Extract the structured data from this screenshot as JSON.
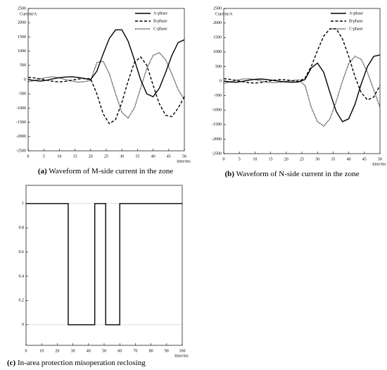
{
  "chart_data": [
    {
      "type": "line",
      "caption_label": "(a)",
      "caption": "Waveform of M-side current in the zone",
      "xlabel": "time/ms",
      "ylabel": "Current/A",
      "x": [
        0,
        2,
        4,
        6,
        8,
        10,
        12,
        14,
        16,
        18,
        20,
        22,
        24,
        26,
        28,
        30,
        32,
        34,
        36,
        38,
        40,
        42,
        44,
        46,
        48,
        50
      ],
      "series": [
        {
          "name": "A-phase",
          "color": "#000000",
          "dash": "solid",
          "values": [
            0,
            -30,
            -50,
            -20,
            30,
            70,
            90,
            100,
            80,
            40,
            0,
            300,
            900,
            1450,
            1750,
            1750,
            1350,
            700,
            0,
            -500,
            -600,
            -300,
            250,
            850,
            1300,
            1400
          ]
        },
        {
          "name": "B-phase",
          "color": "#000000",
          "dash": "dashed",
          "values": [
            80,
            60,
            20,
            -20,
            -60,
            -80,
            -60,
            -20,
            20,
            40,
            30,
            -500,
            -1200,
            -1550,
            -1400,
            -800,
            -50,
            600,
            800,
            500,
            -200,
            -850,
            -1250,
            -1300,
            -1000,
            -600
          ]
        },
        {
          "name": "C-phase",
          "color": "#000000",
          "dash": "dotted",
          "values": [
            -80,
            -30,
            30,
            80,
            100,
            60,
            0,
            -50,
            -90,
            -70,
            -30,
            600,
            650,
            200,
            -500,
            -1150,
            -1350,
            -1000,
            -300,
            400,
            850,
            950,
            700,
            200,
            -350,
            -700
          ]
        }
      ],
      "xlim": [
        0,
        50
      ],
      "xticks": [
        0,
        5,
        10,
        15,
        20,
        25,
        30,
        35,
        40,
        45,
        50
      ],
      "ylim": [
        -2500,
        2500
      ],
      "yticks": [
        -2500,
        -2000,
        -1500,
        -1000,
        -500,
        0,
        500,
        1000,
        1500,
        2000,
        2500
      ],
      "legend": "upper right"
    },
    {
      "type": "line",
      "caption_label": "(b)",
      "caption": "Waveform of N-side current in the zone",
      "xlabel": "time/ms",
      "ylabel": "Current/A",
      "x": [
        0,
        2,
        4,
        6,
        8,
        10,
        12,
        14,
        16,
        18,
        20,
        22,
        24,
        26,
        28,
        30,
        32,
        34,
        36,
        38,
        40,
        42,
        44,
        46,
        48,
        50
      ],
      "series": [
        {
          "name": "A-phase",
          "color": "#000000",
          "dash": "solid",
          "values": [
            0,
            -30,
            -40,
            -10,
            30,
            60,
            70,
            50,
            20,
            -10,
            -30,
            -40,
            -30,
            50,
            450,
            620,
            300,
            -400,
            -1050,
            -1400,
            -1300,
            -800,
            -100,
            500,
            850,
            900
          ]
        },
        {
          "name": "B-phase",
          "color": "#000000",
          "dash": "dashed",
          "values": [
            80,
            60,
            20,
            -20,
            -60,
            -70,
            -50,
            -10,
            30,
            50,
            40,
            10,
            -10,
            100,
            500,
            1050,
            1550,
            1800,
            1800,
            1450,
            850,
            150,
            -400,
            -650,
            -550,
            -150
          ]
        },
        {
          "name": "C-phase",
          "color": "#000000",
          "dash": "dotted",
          "values": [
            -80,
            -30,
            30,
            70,
            80,
            50,
            0,
            -40,
            -60,
            -40,
            -10,
            20,
            40,
            -150,
            -900,
            -1400,
            -1550,
            -1300,
            -700,
            0,
            600,
            850,
            750,
            300,
            -300,
            -900
          ]
        }
      ],
      "xlim": [
        0,
        50
      ],
      "xticks": [
        0,
        5,
        10,
        15,
        20,
        25,
        30,
        35,
        40,
        45,
        50
      ],
      "ylim": [
        -2500,
        2500
      ],
      "yticks": [
        -2500,
        -2000,
        -1500,
        -1000,
        -500,
        0,
        500,
        1000,
        1500,
        2000,
        2500
      ],
      "legend": "upper right"
    },
    {
      "type": "line",
      "caption_label": "(c)",
      "caption": "In-area protection misoperation reclosing",
      "xlabel": "time/ms",
      "x": [
        0,
        27,
        27,
        44,
        44,
        51,
        51,
        60,
        60,
        100
      ],
      "series": [
        {
          "color": "#000000",
          "dash": "solid",
          "values": [
            1,
            1,
            0,
            0,
            1,
            1,
            0,
            0,
            1,
            1
          ]
        }
      ],
      "hlines": [
        0,
        1
      ],
      "xlim": [
        0,
        100
      ],
      "xticks": [
        0,
        10,
        20,
        30,
        40,
        50,
        60,
        70,
        80,
        90,
        100
      ],
      "ylim": [
        -0.17,
        1.15
      ],
      "yticks": [
        0,
        0.2,
        0.4,
        0.6,
        0.8,
        1
      ]
    }
  ]
}
